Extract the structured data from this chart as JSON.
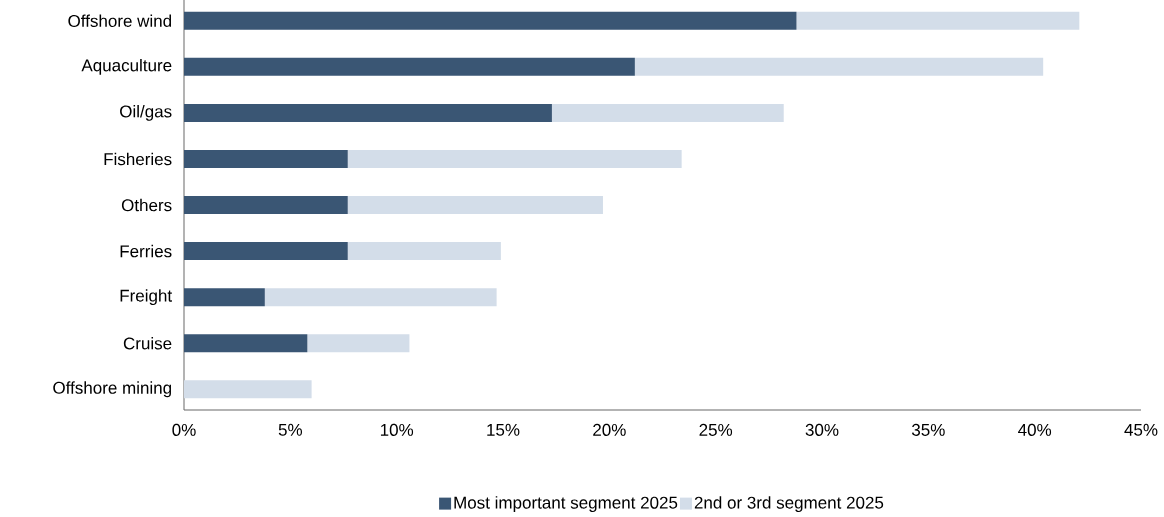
{
  "chart_data": {
    "type": "bar",
    "orientation": "horizontal",
    "stacked": true,
    "categories": [
      "Offshore wind",
      "Aquaculture",
      "Oil/gas",
      "Fisheries",
      "Others",
      "Ferries",
      "Freight",
      "Cruise",
      "Offshore mining"
    ],
    "series": [
      {
        "name": "Most important segment 2025",
        "color": "#3a5674",
        "values": [
          28.8,
          21.2,
          17.3,
          7.7,
          7.7,
          7.7,
          3.8,
          5.8,
          0
        ]
      },
      {
        "name": "2nd or 3rd segment 2025",
        "color": "#d3dde9",
        "values": [
          13.3,
          19.2,
          10.9,
          15.7,
          12.0,
          7.2,
          10.9,
          4.8,
          6.0
        ]
      }
    ],
    "xlim": [
      0,
      45
    ],
    "xticks": [
      {
        "value": 0,
        "label": "0%"
      },
      {
        "value": 5,
        "label": "5%"
      },
      {
        "value": 10,
        "label": "10%"
      },
      {
        "value": 15,
        "label": "15%"
      },
      {
        "value": 20,
        "label": "20%"
      },
      {
        "value": 25,
        "label": "25%"
      },
      {
        "value": 30,
        "label": "30%"
      },
      {
        "value": 35,
        "label": "35%"
      },
      {
        "value": 40,
        "label": "40%"
      },
      {
        "value": 45,
        "label": "45%"
      }
    ],
    "grid": false,
    "legend": "bottom"
  }
}
